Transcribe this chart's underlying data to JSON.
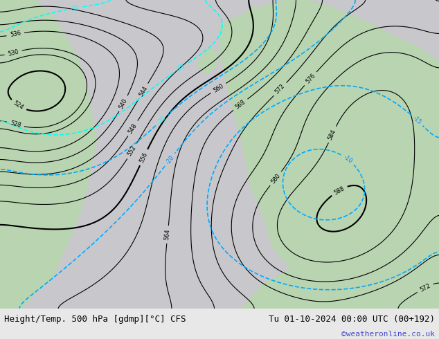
{
  "title_left": "Height/Temp. 500 hPa [gdmp][°C] CFS",
  "title_right": "Tu 01-10-2024 00:00 UTC (00+192)",
  "credit": "©weatheronline.co.uk",
  "bg_color": "#e8e8e8",
  "map_bg": "#c8dfc8",
  "figsize": [
    6.34,
    4.9
  ],
  "dpi": 100,
  "bottom_bar_height": 0.08,
  "font_size_title": 9,
  "font_size_credit": 8
}
